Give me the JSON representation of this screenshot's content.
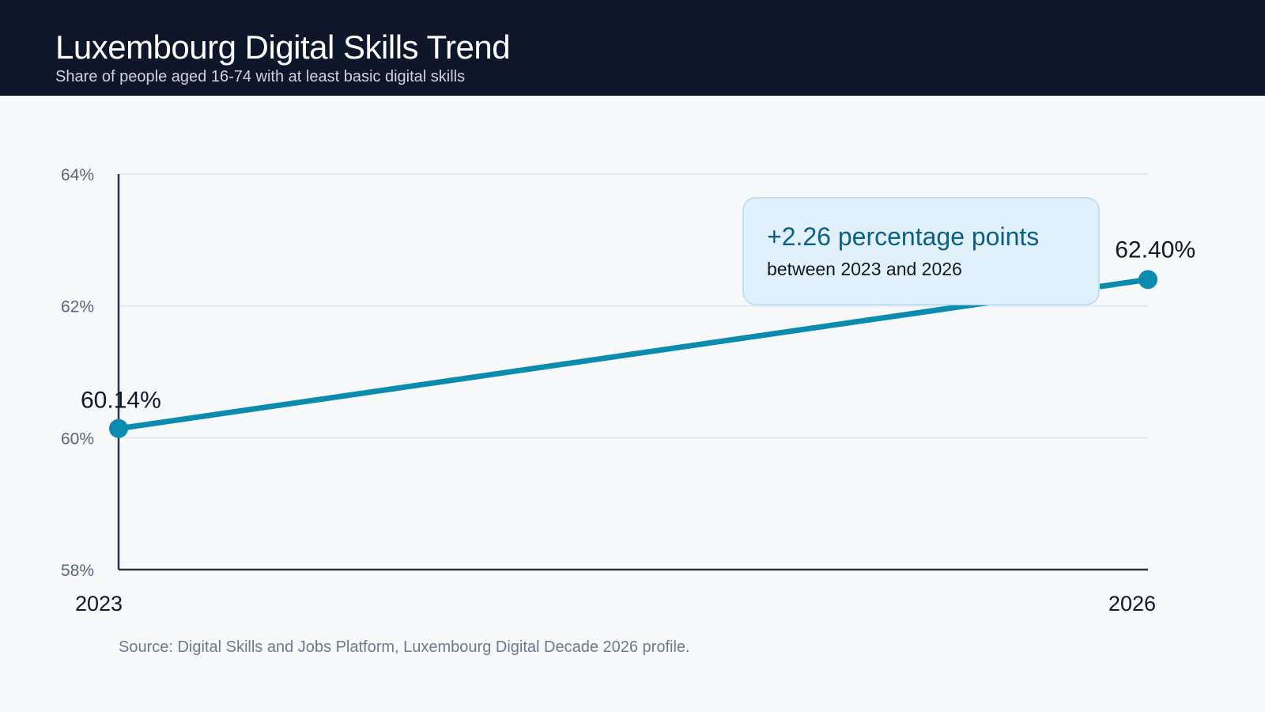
{
  "header": {
    "title": "Luxembourg Digital Skills Trend",
    "subtitle": "Share of people aged 16-74 with at least basic digital skills"
  },
  "chart_data": {
    "type": "line",
    "x": [
      "2023",
      "2026"
    ],
    "series": [
      {
        "values": [
          60.14,
          62.4
        ],
        "labels": [
          "60.14%",
          "62.40%"
        ]
      }
    ],
    "ylim": [
      58,
      64
    ],
    "yticks": [
      58,
      60,
      62,
      64
    ],
    "ytick_labels": [
      "58%",
      "60%",
      "62%",
      "64%"
    ],
    "grid": true,
    "colors": {
      "line": "#0b8bb0",
      "grid": "#dde5ee",
      "axis": "#2a3444"
    },
    "annotation": {
      "headline": "+2.26 percentage points",
      "detail": "between 2023 and 2026"
    }
  },
  "footer": {
    "source": "Source: Digital Skills and Jobs Platform, Luxembourg Digital Decade 2026 profile."
  }
}
